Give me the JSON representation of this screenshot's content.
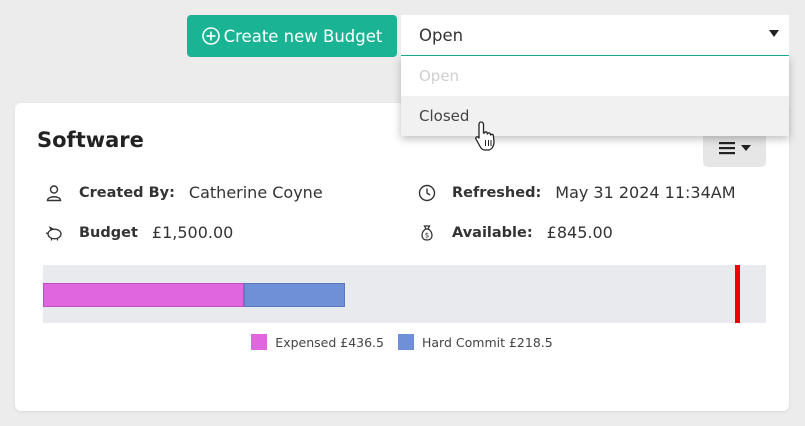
{
  "toolbar": {
    "create_label": "Create new Budget"
  },
  "status_select": {
    "value": "Open",
    "options": [
      {
        "label": "Open",
        "disabled": true
      },
      {
        "label": "Closed",
        "hover": true
      }
    ]
  },
  "card": {
    "title": "Software",
    "created_by": {
      "label": "Created By:",
      "value": "Catherine Coyne"
    },
    "refreshed": {
      "label": "Refreshed:",
      "value": "May 31 2024 11:34AM"
    },
    "budget": {
      "label": "Budget",
      "value": "£1,500.00"
    },
    "available": {
      "label": "Available:",
      "value": "£845.00"
    }
  },
  "chart_data": {
    "type": "bar",
    "orientation": "horizontal-stacked",
    "total": 1500,
    "limit_value": 1500,
    "series": [
      {
        "name": "Expensed £436.5",
        "value": 436.5,
        "color": "#e066e0"
      },
      {
        "name": "Hard Commit £218.5",
        "value": 218.5,
        "color": "#6f8fd6"
      }
    ],
    "limit_color": "#f00000"
  },
  "colors": {
    "accent": "#1ab394"
  }
}
